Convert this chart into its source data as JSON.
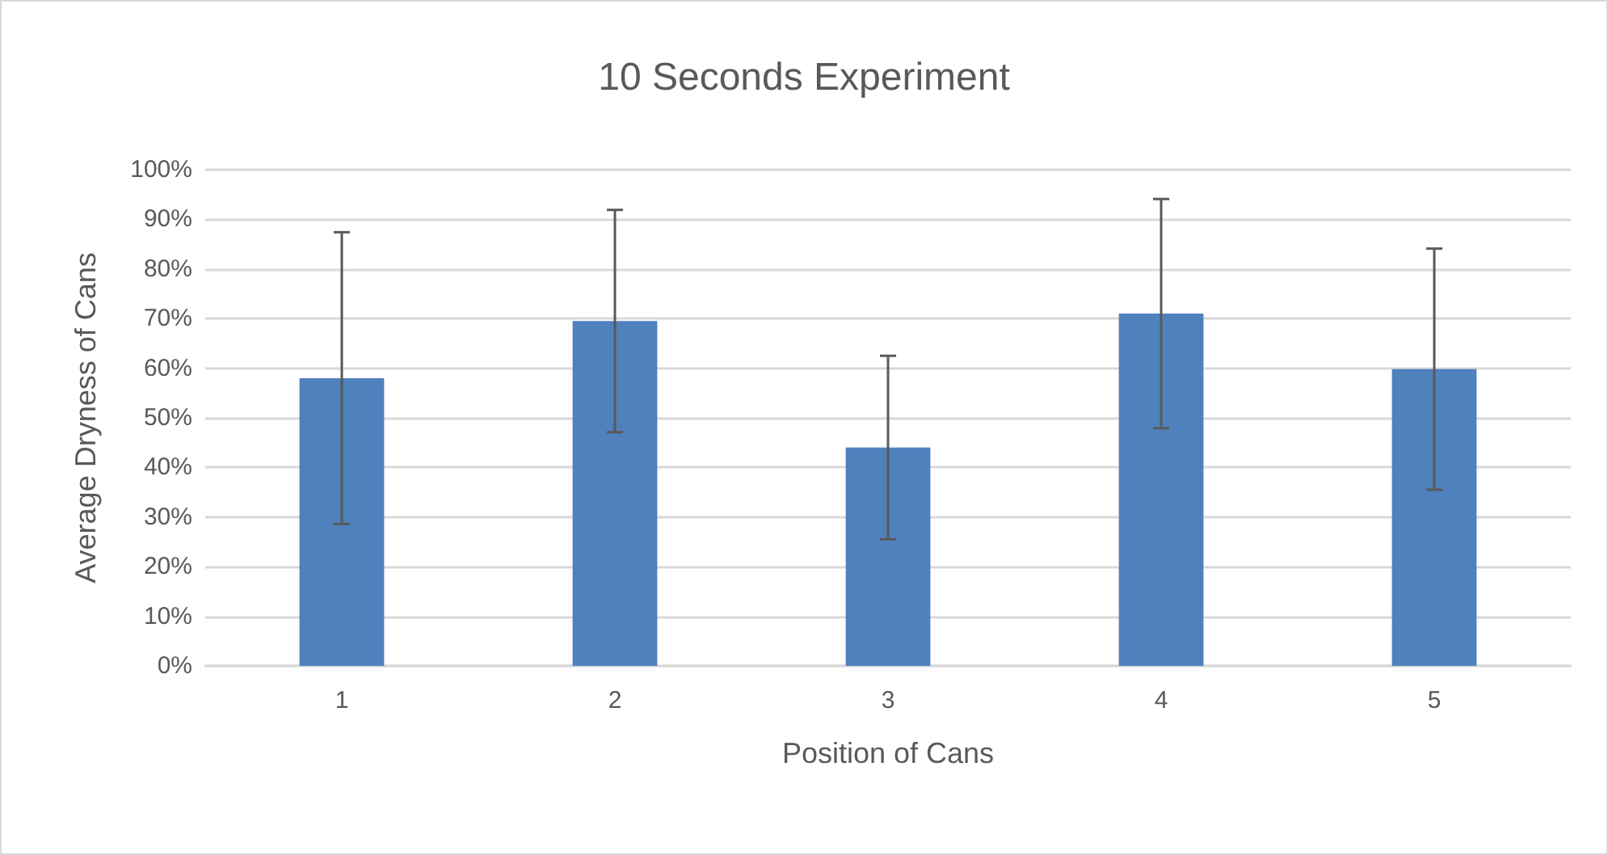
{
  "chart_data": {
    "type": "bar",
    "title": "10 Seconds Experiment",
    "xlabel": "Position of Cans",
    "ylabel": "Average Dryness of Cans",
    "categories": [
      "1",
      "2",
      "3",
      "4",
      "5"
    ],
    "values": [
      58,
      69.5,
      44,
      71,
      59.8
    ],
    "errors": [
      29.4,
      22.4,
      18.5,
      23.1,
      24.3
    ],
    "color": "#4f81bd",
    "ylim": [
      0,
      100
    ],
    "yticks": [
      {
        "value": 0,
        "label": "0%"
      },
      {
        "value": 10,
        "label": "10%"
      },
      {
        "value": 20,
        "label": "20%"
      },
      {
        "value": 30,
        "label": "30%"
      },
      {
        "value": 40,
        "label": "40%"
      },
      {
        "value": 50,
        "label": "50%"
      },
      {
        "value": 60,
        "label": "60%"
      },
      {
        "value": 70,
        "label": "70%"
      },
      {
        "value": 80,
        "label": "80%"
      },
      {
        "value": 90,
        "label": "90%"
      },
      {
        "value": 100,
        "label": "100%"
      }
    ],
    "grid": "y"
  }
}
